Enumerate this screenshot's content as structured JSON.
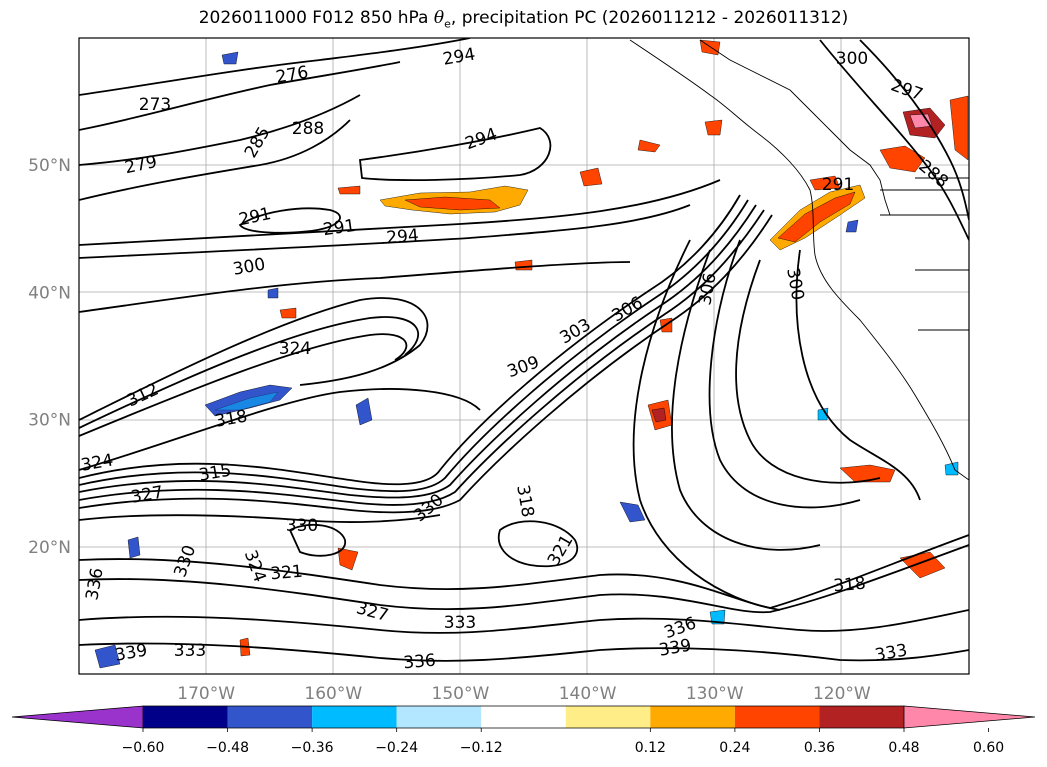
{
  "chart_data": {
    "type": "contour-map",
    "title_prefix": "2026011000 F012 850 hPa ",
    "title_symbol": "θ",
    "title_subscript": "e",
    "title_suffix": ", precipitation PC (2026011212 - 2026011312)",
    "lon_ticks": [
      "170°W",
      "160°W",
      "150°W",
      "140°W",
      "130°W",
      "120°W"
    ],
    "lon_values": [
      -170,
      -160,
      -150,
      -140,
      -130,
      -120
    ],
    "lat_ticks": [
      "50°N",
      "40°N",
      "30°N",
      "20°N"
    ],
    "lat_values": [
      50,
      40,
      30,
      20
    ],
    "lon_range": [
      -180,
      -110
    ],
    "lat_range": [
      10,
      60
    ],
    "contour_labels": [
      "273",
      "276",
      "279",
      "285",
      "288",
      "291",
      "291",
      "294",
      "294",
      "294",
      "300",
      "300",
      "297",
      "291",
      "288",
      "300",
      "306",
      "303",
      "306",
      "309",
      "312",
      "315",
      "318",
      "324",
      "324",
      "327",
      "330",
      "330",
      "321",
      "318",
      "321",
      "324",
      "327",
      "330",
      "333",
      "333",
      "336",
      "336",
      "339",
      "339",
      "318",
      "333",
      "336"
    ],
    "colorbar": {
      "ticks": [
        "−0.60",
        "−0.48",
        "−0.36",
        "−0.24",
        "−0.12",
        "0.12",
        "0.24",
        "0.36",
        "0.48",
        "0.60"
      ],
      "tick_values": [
        -0.6,
        -0.48,
        -0.36,
        -0.24,
        -0.12,
        0.12,
        0.24,
        0.36,
        0.48,
        0.6
      ],
      "colors": [
        "#9933cc",
        "#000088",
        "#3355cc",
        "#00bbff",
        "#b3e6ff",
        "#ffffff",
        "#ffee88",
        "#ffaa00",
        "#ff4400",
        "#b22222",
        "#ff88aa"
      ]
    }
  }
}
